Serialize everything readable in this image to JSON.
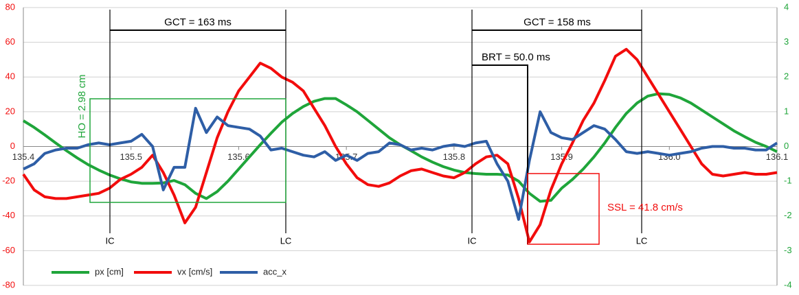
{
  "chart_data": {
    "type": "line",
    "x": [
      135.4,
      135.41,
      135.42,
      135.43,
      135.44,
      135.45,
      135.46,
      135.47,
      135.48,
      135.49,
      135.5,
      135.51,
      135.52,
      135.53,
      135.54,
      135.55,
      135.56,
      135.57,
      135.58,
      135.59,
      135.6,
      135.61,
      135.62,
      135.63,
      135.64,
      135.65,
      135.66,
      135.67,
      135.68,
      135.69,
      135.7,
      135.71,
      135.72,
      135.73,
      135.74,
      135.75,
      135.76,
      135.77,
      135.78,
      135.79,
      135.8,
      135.81,
      135.82,
      135.83,
      135.84,
      135.85,
      135.86,
      135.87,
      135.88,
      135.89,
      135.9,
      135.91,
      135.92,
      135.93,
      135.94,
      135.95,
      135.96,
      135.97,
      135.98,
      135.99,
      136.0,
      136.01,
      136.02,
      136.03,
      136.04,
      136.05,
      136.06,
      136.07,
      136.08,
      136.09,
      136.1
    ],
    "series": [
      {
        "name": "px [cm]",
        "color": "#1fa53a",
        "axis": "y2",
        "values": [
          0.74,
          0.55,
          0.33,
          0.1,
          -0.12,
          -0.33,
          -0.52,
          -0.68,
          -0.82,
          -0.93,
          -1.02,
          -1.06,
          -1.06,
          -1.05,
          -0.98,
          -1.1,
          -1.35,
          -1.5,
          -1.3,
          -1.0,
          -0.65,
          -0.3,
          0.05,
          0.38,
          0.7,
          0.95,
          1.15,
          1.3,
          1.38,
          1.38,
          1.2,
          1.0,
          0.75,
          0.5,
          0.25,
          0.05,
          -0.12,
          -0.3,
          -0.45,
          -0.58,
          -0.68,
          -0.75,
          -0.78,
          -0.8,
          -0.8,
          -0.82,
          -1.0,
          -1.35,
          -1.58,
          -1.55,
          -1.2,
          -0.95,
          -0.65,
          -0.3,
          0.1,
          0.55,
          0.95,
          1.25,
          1.45,
          1.52,
          1.5,
          1.4,
          1.25,
          1.05,
          0.85,
          0.65,
          0.45,
          0.28,
          0.12,
          0.0,
          -0.15
        ]
      },
      {
        "name": "vx [cm/s]",
        "color": "#f20c0c",
        "axis": "y",
        "values": [
          -16,
          -25,
          -29,
          -30,
          -30,
          -29,
          -28,
          -27,
          -24,
          -19,
          -16,
          -12,
          -5,
          -15,
          -28,
          -44,
          -35,
          -15,
          5,
          20,
          32,
          40,
          48,
          45,
          40,
          37,
          32,
          22,
          12,
          0,
          -10,
          -18,
          -22,
          -23,
          -21,
          -17,
          -14,
          -13,
          -15,
          -17,
          -18,
          -15,
          -10,
          -6,
          -5,
          -10,
          -30,
          -55,
          -45,
          -25,
          -10,
          2,
          15,
          25,
          38,
          52,
          56,
          50,
          40,
          30,
          20,
          10,
          0,
          -10,
          -16,
          -17,
          -16,
          -15,
          -16,
          -16,
          -15
        ]
      },
      {
        "name": "acc_x",
        "color": "#2e5ea6",
        "axis": "y",
        "values": [
          -13,
          -10,
          -4,
          -2,
          -1,
          -1,
          1,
          2,
          1,
          2,
          3,
          7,
          0,
          -25,
          -12,
          -12,
          22,
          8,
          17,
          12,
          11,
          10,
          6,
          -2,
          -1,
          -3,
          -5,
          -6,
          -3,
          -8,
          -5,
          -8,
          -4,
          -3,
          2,
          1,
          -2,
          -1,
          -2,
          0,
          1,
          0,
          2,
          3,
          -10,
          -20,
          -42,
          -8,
          20,
          8,
          5,
          4,
          8,
          12,
          10,
          4,
          -3,
          -4,
          -3,
          -4,
          -5,
          -4,
          -3,
          -1,
          0,
          0,
          -1,
          -1,
          -2,
          -2,
          2
        ]
      }
    ],
    "xlim": [
      135.4,
      136.1
    ],
    "xticks": [
      135.4,
      135.5,
      135.6,
      135.7,
      135.8,
      135.9,
      {
        "value": 136,
        "label": "136.0"
      },
      136.1
    ],
    "ylim": [
      -80,
      80
    ],
    "yticks": [
      -80,
      -60,
      -40,
      -20,
      0,
      20,
      40,
      60,
      80
    ],
    "y2lim": [
      -4,
      4
    ],
    "y2ticks": [
      -4,
      -3,
      -2,
      -1,
      0,
      1,
      2,
      3,
      4
    ],
    "grid": true,
    "annotations": {
      "gct1": "GCT = 163 ms",
      "gct2": "GCT = 158 ms",
      "brt": "BRT = 50.0 ms",
      "ssl": "SSL = 41.8 cm/s",
      "ho": "HO = 2.98 cm",
      "events": [
        "IC",
        "LC",
        "IC",
        "LC"
      ]
    }
  }
}
